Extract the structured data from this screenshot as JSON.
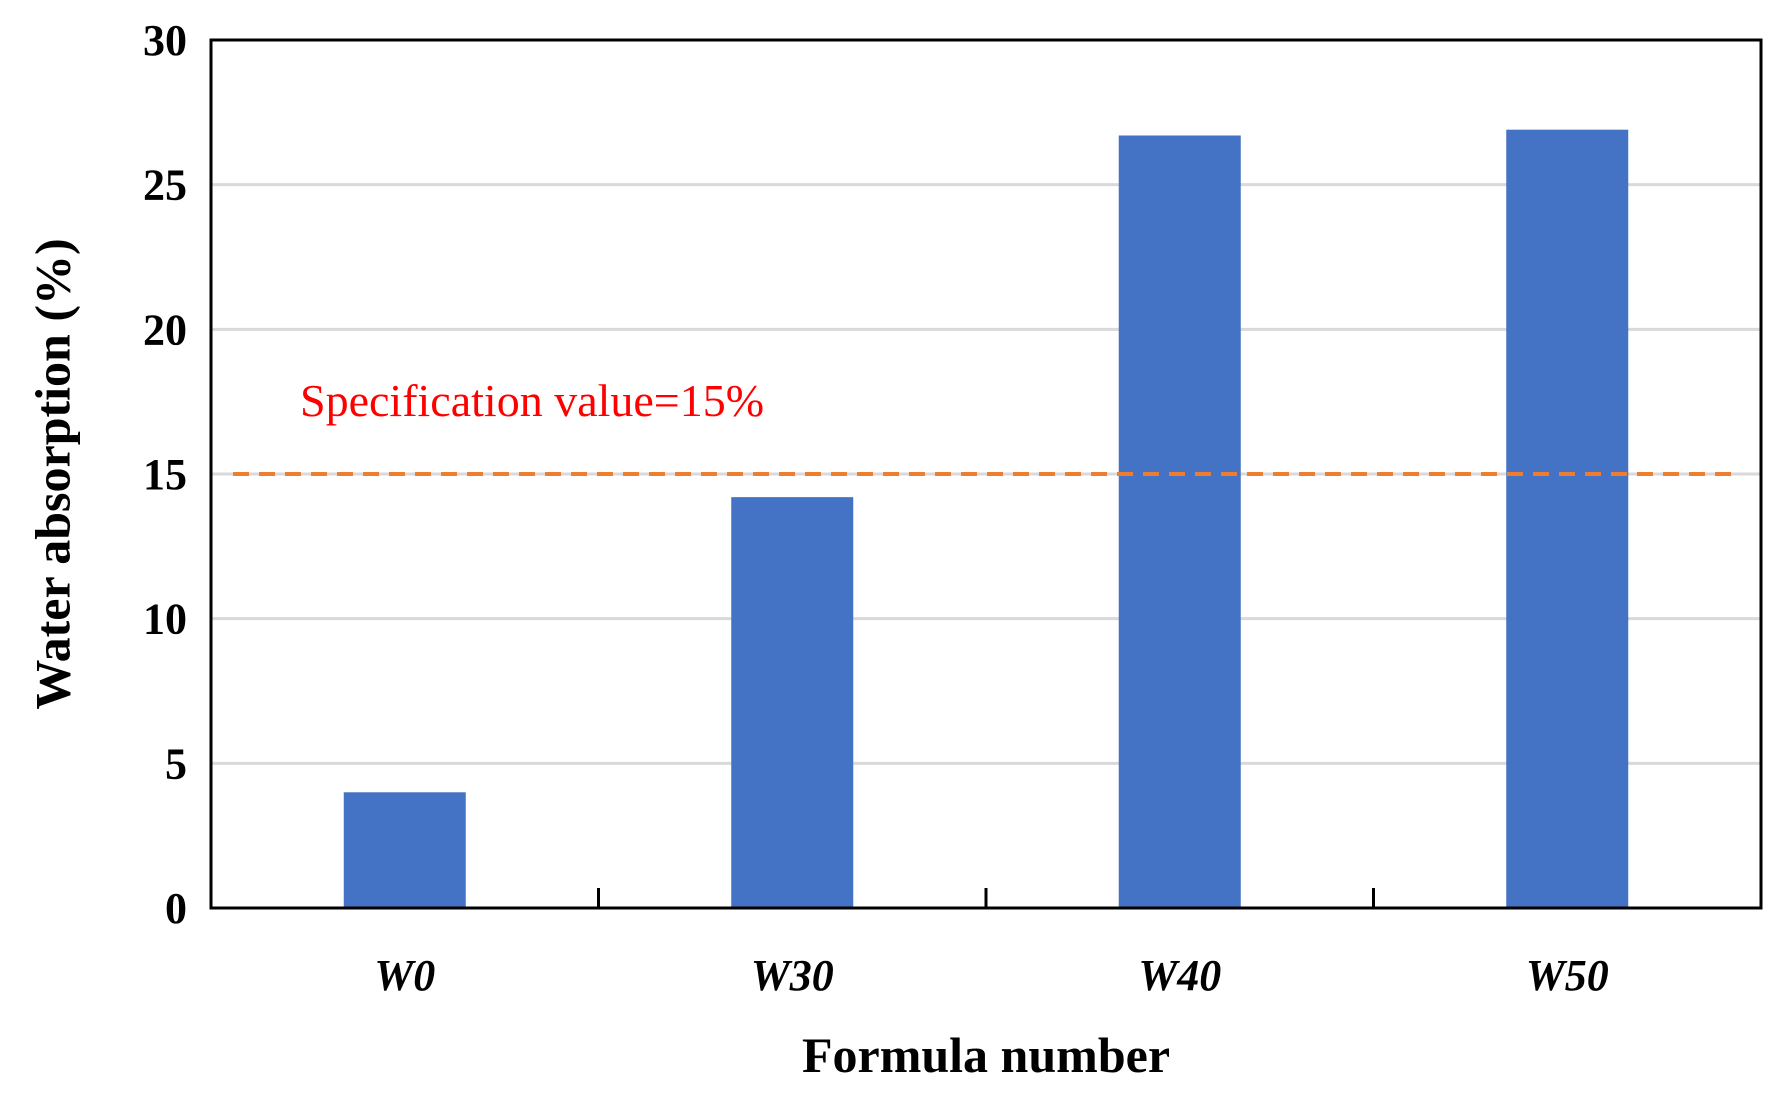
{
  "chart_data": {
    "type": "bar",
    "title": "",
    "xlabel": "Formula number",
    "ylabel": "Water absorption (%)",
    "categories": [
      "W0",
      "W30",
      "W40",
      "W50"
    ],
    "values": [
      4.0,
      14.2,
      26.7,
      26.9
    ],
    "ylim": [
      0,
      30
    ],
    "yticks": [
      0,
      5,
      10,
      15,
      20,
      25,
      30
    ],
    "grid": true,
    "legend": "none",
    "reference_line": {
      "value": 15,
      "label": "Specification value=15%",
      "style": "dashed"
    },
    "colors": {
      "bar": "#4472C4",
      "reference_line": "#ED7D31",
      "reference_label": "#FF0000"
    }
  }
}
